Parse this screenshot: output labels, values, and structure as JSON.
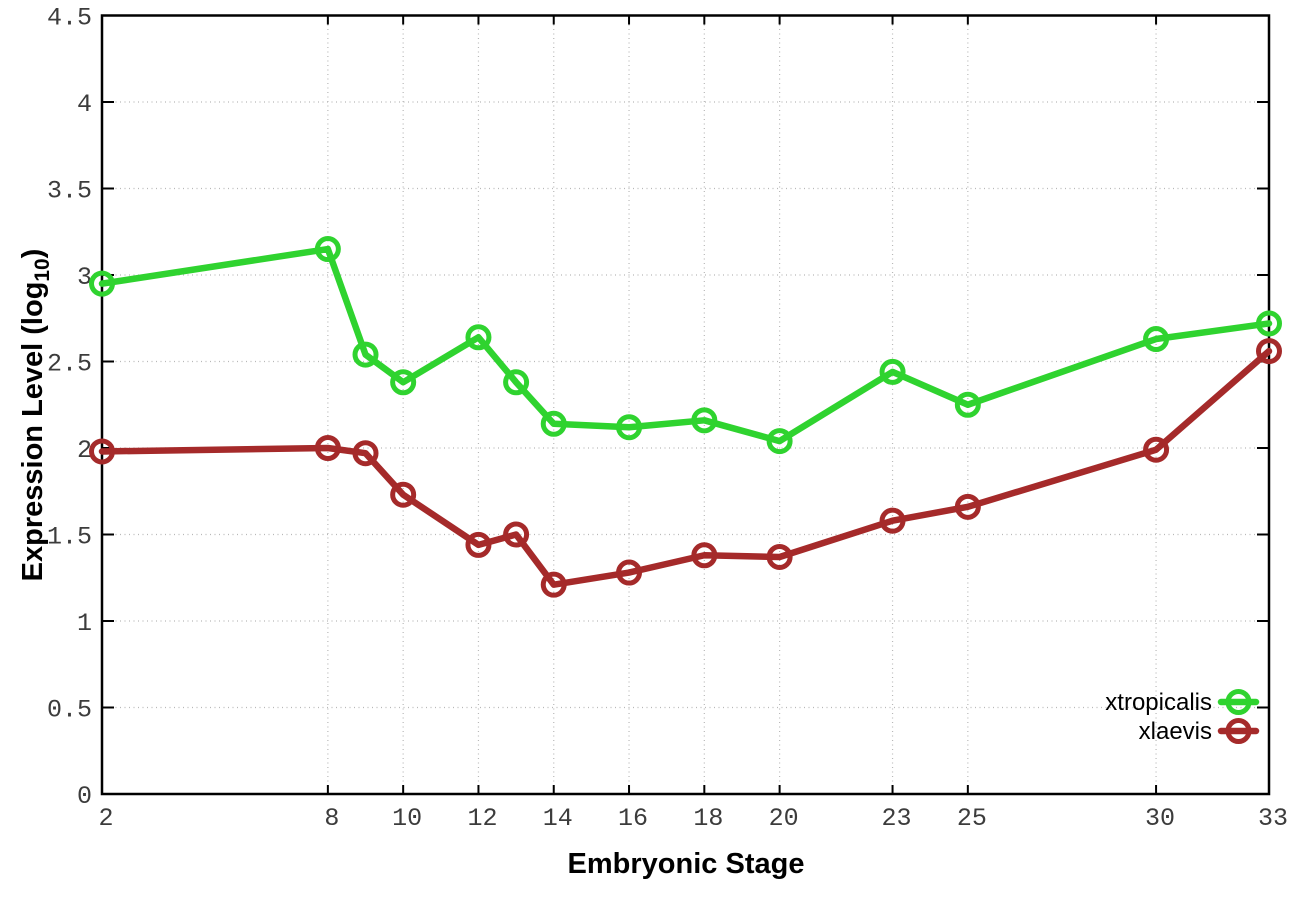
{
  "chart_data": {
    "type": "line",
    "title": "",
    "xlabel": "Embryonic Stage",
    "ylabel": "Expression Level (log10)",
    "ylabel_parts": {
      "main": "Expression Level (log",
      "sub": "10",
      "close": ")"
    },
    "x": [
      2,
      8,
      9,
      10,
      12,
      13,
      14,
      16,
      18,
      20,
      23,
      25,
      30,
      33
    ],
    "series": [
      {
        "name": "xtropicalis",
        "color": "#2fd32f",
        "values": [
          2.95,
          3.15,
          2.54,
          2.38,
          2.64,
          2.38,
          2.14,
          2.12,
          2.16,
          2.04,
          2.44,
          2.25,
          2.63,
          2.72
        ]
      },
      {
        "name": "xlaevis",
        "color": "#a52a2a",
        "values": [
          1.98,
          2.0,
          1.97,
          1.73,
          1.44,
          1.5,
          1.21,
          1.28,
          1.38,
          1.37,
          1.58,
          1.66,
          1.99,
          2.56
        ]
      }
    ],
    "xlim": [
      2,
      33
    ],
    "ylim": [
      0,
      4.5
    ],
    "xticks": {
      "values": [
        2,
        8,
        10,
        12,
        14,
        16,
        18,
        20,
        23,
        25,
        30,
        33
      ],
      "labels": [
        "2",
        "8",
        "10",
        "12",
        "14",
        "16",
        "18",
        "20",
        "23",
        "25",
        "30",
        "33"
      ]
    },
    "yticks": {
      "values": [
        0,
        0.5,
        1,
        1.5,
        2,
        2.5,
        3,
        3.5,
        4,
        4.5
      ],
      "labels": [
        "0",
        "0.5",
        "1",
        "1.5",
        "2",
        "2.5",
        "3",
        "3.5",
        "4",
        "4.5"
      ]
    },
    "grid": true,
    "legend": {
      "position": "inside-bottom-right",
      "entries": [
        "xtropicalis",
        "xlaevis"
      ]
    },
    "style_colors": {
      "border": "#000000",
      "grid": "#b8b8b8",
      "tick_label": "#3c3c3c",
      "legend_text": "#000000"
    }
  }
}
